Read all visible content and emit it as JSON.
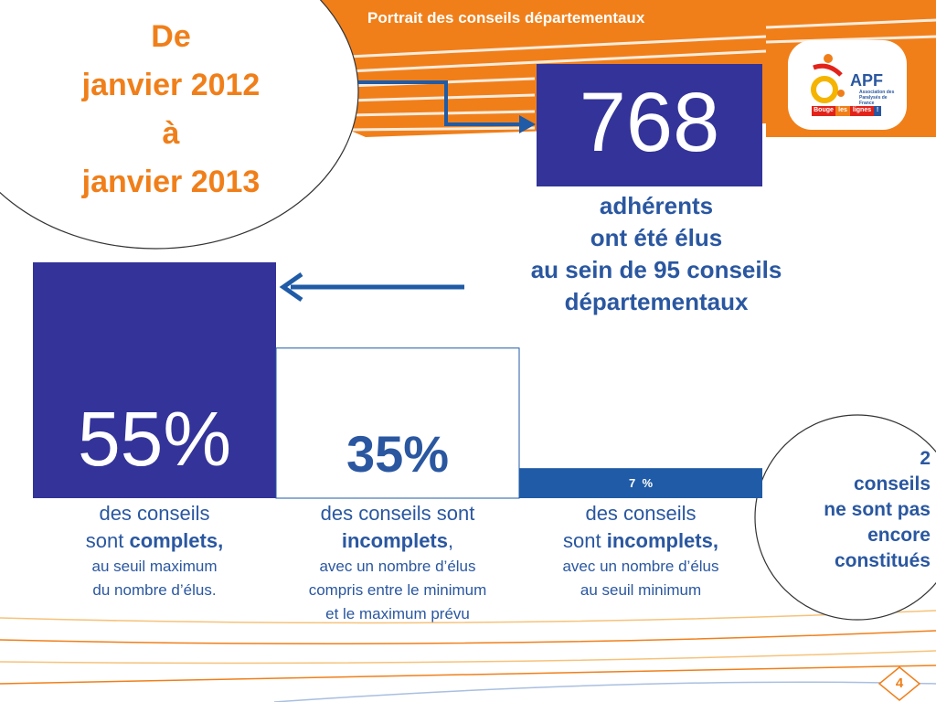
{
  "header": {
    "title": "Portrait des conseils départementaux"
  },
  "period": {
    "lines": [
      "De",
      "janvier 2012",
      "à",
      "janvier 2013"
    ]
  },
  "headline_stat": {
    "value": "768",
    "desc_lines": [
      "adhérents",
      "ont été élus",
      "au sein de 95 conseils",
      "départementaux"
    ]
  },
  "logo": {
    "name": "APF",
    "tagline": "Association des Paralysés de France",
    "slogan": [
      "Bouge",
      "les",
      "lignes",
      "!"
    ]
  },
  "chart_data": {
    "type": "bar",
    "categories": [
      "complets",
      "incomplets (entre minimum et maximum)",
      "incomplets (seuil minimum)"
    ],
    "values": [
      55,
      35,
      7
    ],
    "unit": "%",
    "labels": [
      "55%",
      "35%",
      "7  %"
    ],
    "colors": [
      "#333399",
      "#ffffff",
      "#1f5ba6"
    ],
    "ylim": [
      0,
      100
    ]
  },
  "columns": [
    {
      "line1": "des conseils",
      "line2_pre": "sont ",
      "line2_bold": "complets",
      "line2_post": ",",
      "line3": "au seuil maximum",
      "line4": "du nombre d’élus."
    },
    {
      "line1": "des conseils sont",
      "line2_pre": "",
      "line2_bold": "incomplets",
      "line2_post": ",",
      "line3": "avec un nombre d’élus",
      "line4": "compris entre le minimum",
      "line5": "et le maximum prévu"
    },
    {
      "line1": "des conseils",
      "line2_pre": "sont ",
      "line2_bold": "incomplets",
      "line2_post": ",",
      "line3": "avec un nombre d’élus",
      "line4": "au seuil minimum"
    }
  ],
  "not_constituted": {
    "lines": [
      "2",
      "conseils",
      "ne sont pas",
      "encore",
      "constitués"
    ]
  },
  "page_number": "4",
  "colors": {
    "orange": "#f07f1a",
    "navy": "#333399",
    "blue": "#2a57a0",
    "bar_blue": "#1f5ba6"
  }
}
